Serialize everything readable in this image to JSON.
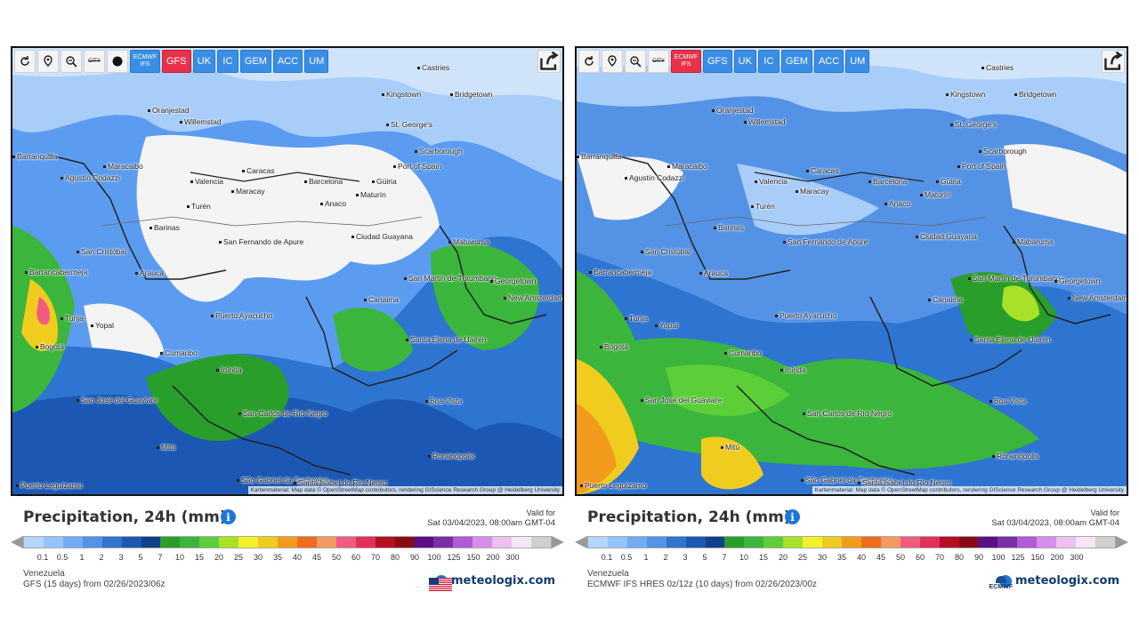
{
  "legend_scale": {
    "colors": [
      "#b4d6ff",
      "#95c4ff",
      "#73acf5",
      "#5492e6",
      "#2e74d1",
      "#1c58b3",
      "#12408c",
      "#2a9e2a",
      "#3bb53b",
      "#5ccf38",
      "#a9e128",
      "#f3f128",
      "#f0cc1f",
      "#f29a1c",
      "#f06c1c",
      "#f39a60",
      "#f05b82",
      "#e3305a",
      "#b40f22",
      "#8a0a16",
      "#5b1185",
      "#7a2ea8",
      "#b35ad6",
      "#d58ee9",
      "#eec0f2",
      "#f5e6f7",
      "#cfcfcf"
    ],
    "labels": [
      "0.1",
      "0.5",
      "1",
      "2",
      "3",
      "5",
      "7",
      "10",
      "15",
      "20",
      "25",
      "30",
      "35",
      "40",
      "45",
      "50",
      "60",
      "70",
      "80",
      "90",
      "100",
      "125",
      "150",
      "200",
      "300"
    ]
  },
  "panels": [
    {
      "id": "left",
      "toolbar": {
        "city_label": "CITY",
        "models": [
          {
            "label": "ECMWF IFS",
            "small": true,
            "active": false
          },
          {
            "label": "GFS",
            "small": false,
            "active": true
          },
          {
            "label": "UK",
            "small": false,
            "active": false
          },
          {
            "label": "IC",
            "small": false,
            "active": false
          },
          {
            "label": "GEM",
            "small": false,
            "active": false
          },
          {
            "label": "ACC",
            "small": false,
            "active": false
          },
          {
            "label": "UM",
            "small": false,
            "active": false
          }
        ]
      },
      "attribution": "Kartenmaterial: Map data © OpenStreetMap contributors, rendering GIScience Research Group @ Heidelberg University",
      "title": "Precipitation, 24h (mm)",
      "valid_for_label": "Valid for",
      "valid_for_time": "Sat 03/04/2023, 08:00am GMT-04",
      "region": "Venezuela",
      "model_run": "GFS (15 days) from 02/26/2023/06z",
      "brand": "meteologix.com"
    },
    {
      "id": "right",
      "toolbar": {
        "city_label": "CITY",
        "models": [
          {
            "label": "ECMWF IFS",
            "small": true,
            "active": true
          },
          {
            "label": "GFS",
            "small": false,
            "active": false
          },
          {
            "label": "UK",
            "small": false,
            "active": false
          },
          {
            "label": "IC",
            "small": false,
            "active": false
          },
          {
            "label": "GEM",
            "small": false,
            "active": false
          },
          {
            "label": "ACC",
            "small": false,
            "active": false
          },
          {
            "label": "UM",
            "small": false,
            "active": false
          }
        ]
      },
      "attribution": "Kartenmaterial: Map data © OpenStreetMap contributors, rendering GIScience Research Group @ Heidelberg University",
      "title": "Precipitation, 24h (mm)",
      "valid_for_label": "Valid for",
      "valid_for_time": "Sat 03/04/2023, 08:00am GMT-04",
      "region": "Venezuela",
      "model_run": "ECMWF IFS HRES 0z/12z (10 days) from 02/26/2023/00z",
      "brand": "meteologix.com",
      "logo_text": "ECMWF"
    }
  ],
  "cities": [
    {
      "name": "Castries"
    },
    {
      "name": "Kingstown"
    },
    {
      "name": "Bridgetown"
    },
    {
      "name": "Oranjestad"
    },
    {
      "name": "Willemstad"
    },
    {
      "name": "St. George's"
    },
    {
      "name": "Scarborough"
    },
    {
      "name": "Port of Spain"
    },
    {
      "name": "Barranquilla"
    },
    {
      "name": "Maracaibo"
    },
    {
      "name": "Valencia"
    },
    {
      "name": "Caracas"
    },
    {
      "name": "Maracay"
    },
    {
      "name": "Barcelona"
    },
    {
      "name": "Güiria"
    },
    {
      "name": "Maturín"
    },
    {
      "name": "Anaco"
    },
    {
      "name": "Agustín Codazzi"
    },
    {
      "name": "Turén"
    },
    {
      "name": "Barinas"
    },
    {
      "name": "San Cristóbal"
    },
    {
      "name": "San Fernando de Apure"
    },
    {
      "name": "Ciudad Guayana"
    },
    {
      "name": "Mabaruma"
    },
    {
      "name": "Barrancabermeja"
    },
    {
      "name": "Arauca"
    },
    {
      "name": "San Martín de Turumbang"
    },
    {
      "name": "Georgetown"
    },
    {
      "name": "New Amsterdam"
    },
    {
      "name": "Canaima"
    },
    {
      "name": "Tunja"
    },
    {
      "name": "Yopal"
    },
    {
      "name": "Puerto Ayacucho"
    },
    {
      "name": "Bogotá"
    },
    {
      "name": "Santa Elena de Uairén"
    },
    {
      "name": "Cumaribo"
    },
    {
      "name": "Inírida"
    },
    {
      "name": "Boa Vista"
    },
    {
      "name": "San José del Guaviare"
    },
    {
      "name": "San Carlos de Río Negro"
    },
    {
      "name": "Mitú"
    },
    {
      "name": "Rorainópolis"
    },
    {
      "name": "Puerto Leguízamo"
    },
    {
      "name": "São Gabriel da Cachoeira"
    },
    {
      "name": "Santa Isabel do Rio Negro"
    }
  ]
}
